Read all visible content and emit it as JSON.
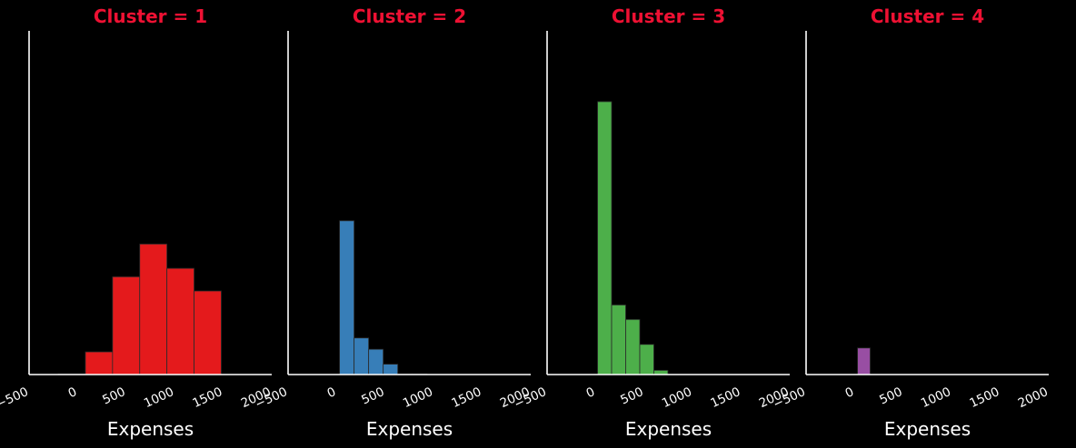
{
  "chart_data": {
    "type": "bar",
    "title_color": "#ee1133",
    "axis_color": "#ffffff",
    "xlim": [
      -500,
      2000
    ],
    "ylim": [
      0,
      1
    ],
    "x_ticks": [
      -500,
      0,
      500,
      1000,
      1500,
      2000
    ],
    "x_tick_labels": [
      "−500",
      "0",
      "500",
      "1000",
      "1500",
      "2000"
    ],
    "bin_width_note": "",
    "panels": [
      {
        "title": "Cluster = 1",
        "xlabel": "Expenses",
        "color": "#e41a1c",
        "bins": [
          {
            "start": -200,
            "end": 80,
            "value": 0.002
          },
          {
            "start": 80,
            "end": 360,
            "value": 0.07
          },
          {
            "start": 360,
            "end": 640,
            "value": 0.302
          },
          {
            "start": 640,
            "end": 920,
            "value": 0.403
          },
          {
            "start": 920,
            "end": 1200,
            "value": 0.328
          },
          {
            "start": 1200,
            "end": 1480,
            "value": 0.258
          }
        ]
      },
      {
        "title": "Cluster = 2",
        "xlabel": "Expenses",
        "color": "#377eb8",
        "bins": [
          {
            "start": 30,
            "end": 180,
            "value": 0.475
          },
          {
            "start": 180,
            "end": 330,
            "value": 0.113
          },
          {
            "start": 330,
            "end": 480,
            "value": 0.078
          },
          {
            "start": 480,
            "end": 630,
            "value": 0.032
          },
          {
            "start": 630,
            "end": 780,
            "value": 0.002
          },
          {
            "start": 780,
            "end": 930,
            "value": 0.002
          }
        ]
      },
      {
        "title": "Cluster = 3",
        "xlabel": "Expenses",
        "color": "#4daf4a",
        "bins": [
          {
            "start": 20,
            "end": 165,
            "value": 0.843
          },
          {
            "start": 165,
            "end": 310,
            "value": 0.215
          },
          {
            "start": 310,
            "end": 455,
            "value": 0.17
          },
          {
            "start": 455,
            "end": 600,
            "value": 0.093
          },
          {
            "start": 600,
            "end": 745,
            "value": 0.013
          }
        ]
      },
      {
        "title": "Cluster = 4",
        "xlabel": "Expenses",
        "color": "#984ea3",
        "bins": [
          {
            "start": 30,
            "end": 160,
            "value": 0.082
          }
        ]
      }
    ]
  }
}
